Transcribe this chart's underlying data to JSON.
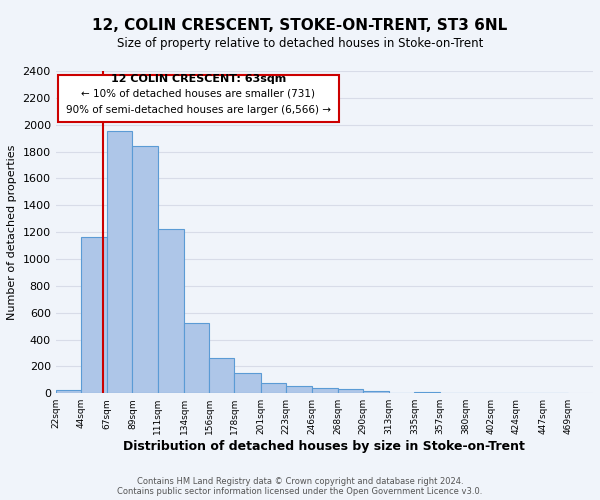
{
  "title": "12, COLIN CRESCENT, STOKE-ON-TRENT, ST3 6NL",
  "subtitle": "Size of property relative to detached houses in Stoke-on-Trent",
  "xlabel": "Distribution of detached houses by size in Stoke-on-Trent",
  "ylabel": "Number of detached properties",
  "bar_left_edges": [
    22,
    44,
    67,
    89,
    111,
    134,
    156,
    178,
    201,
    223,
    246,
    268,
    290,
    313,
    335,
    357,
    380,
    402,
    424,
    447
  ],
  "bar_widths": [
    22,
    23,
    22,
    22,
    23,
    22,
    22,
    23,
    22,
    23,
    22,
    22,
    23,
    22,
    22,
    23,
    22,
    22,
    23,
    22
  ],
  "bar_heights": [
    25,
    1160,
    1950,
    1840,
    1220,
    520,
    265,
    150,
    80,
    55,
    40,
    35,
    15,
    5,
    10,
    0,
    5,
    0,
    0,
    0
  ],
  "tick_labels": [
    "22sqm",
    "44sqm",
    "67sqm",
    "89sqm",
    "111sqm",
    "134sqm",
    "156sqm",
    "178sqm",
    "201sqm",
    "223sqm",
    "246sqm",
    "268sqm",
    "290sqm",
    "313sqm",
    "335sqm",
    "357sqm",
    "380sqm",
    "402sqm",
    "424sqm",
    "447sqm",
    "469sqm"
  ],
  "bar_color": "#aec6e8",
  "bar_edge_color": "#5b9bd5",
  "vline_x": 63,
  "vline_color": "#cc0000",
  "ylim": [
    0,
    2400
  ],
  "yticks": [
    0,
    200,
    400,
    600,
    800,
    1000,
    1200,
    1400,
    1600,
    1800,
    2000,
    2200,
    2400
  ],
  "annotation_title": "12 COLIN CRESCENT: 63sqm",
  "annotation_line1": "← 10% of detached houses are smaller (731)",
  "annotation_line2": "90% of semi-detached houses are larger (6,566) →",
  "annotation_box_color": "#cc0000",
  "footer_line1": "Contains HM Land Registry data © Crown copyright and database right 2024.",
  "footer_line2": "Contains public sector information licensed under the Open Government Licence v3.0.",
  "bg_color": "#f0f4fa",
  "grid_color": "#d8dce8",
  "xlim_left": 22,
  "xlim_right": 491
}
